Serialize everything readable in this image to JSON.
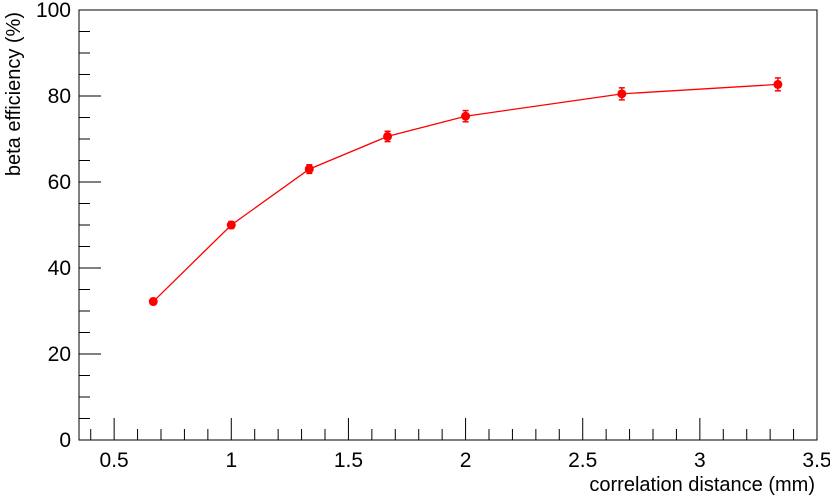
{
  "chart_data": {
    "type": "line",
    "title": "",
    "xlabel": "correlation distance (mm)",
    "ylabel": "beta efficiency (%)",
    "xlim": [
      0.35,
      3.5
    ],
    "ylim": [
      0,
      100
    ],
    "xticks": [
      0.5,
      1,
      1.5,
      2,
      2.5,
      3,
      3.5
    ],
    "xtick_labels": [
      "0.5",
      "1",
      "1.5",
      "2",
      "2.5",
      "3",
      "3.5"
    ],
    "yticks": [
      0,
      20,
      40,
      60,
      80,
      100
    ],
    "ytick_labels": [
      "0",
      "20",
      "40",
      "60",
      "80",
      "100"
    ],
    "grid": false,
    "legend": "none",
    "color": "#ff0000",
    "series": [
      {
        "x": [
          0.667,
          1.0,
          1.333,
          1.667,
          2.0,
          2.667,
          3.333
        ],
        "y": [
          32.2,
          50.0,
          63.0,
          70.6,
          75.3,
          80.5,
          82.7
        ],
        "yerr": [
          0.7,
          0.8,
          1.0,
          1.2,
          1.3,
          1.4,
          1.5
        ]
      }
    ]
  }
}
